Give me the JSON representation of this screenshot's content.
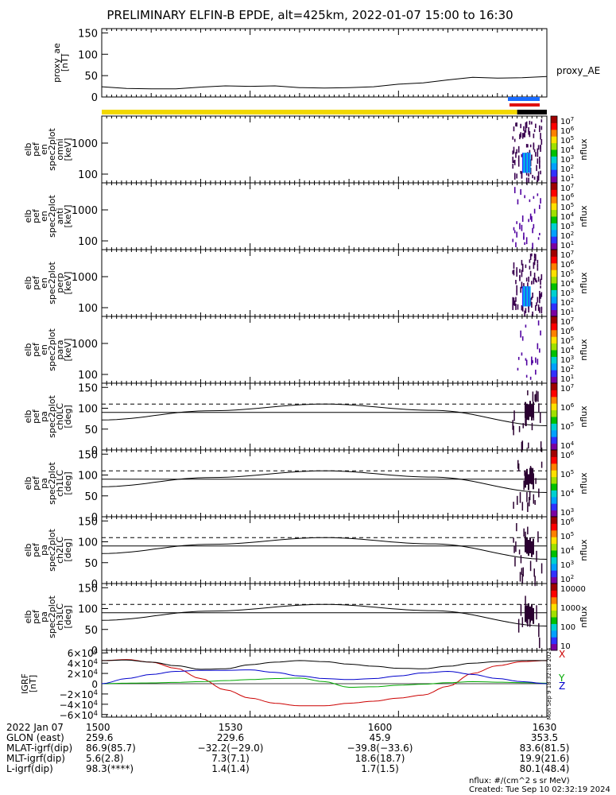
{
  "title": "PRELIMINARY ELFIN-B EPDE, alt=425km, 2022-01-07 15:00 to 16:30",
  "colors": {
    "ae": "#000000",
    "yellow": "#f2d800",
    "black": "#000000",
    "blue_bar": "#1a6cff",
    "red_bar": "#e01010",
    "grf_x": "#cc0000",
    "grf_y": "#00aa00",
    "grf_z": "#0000cc",
    "grf_total": "#000000"
  },
  "ae_panel": {
    "label_lines": [
      "proxy_ae",
      "[nT]"
    ],
    "legend": "proxy_AE",
    "yticks": [
      "150",
      "100",
      "50",
      "0"
    ]
  },
  "spec_energy_panels": [
    {
      "name": "omni",
      "label_lines": [
        "elb",
        "pef",
        "en",
        "spec2plot",
        "omni",
        "[keV]"
      ],
      "yticks": [
        "1000",
        "100"
      ],
      "cbar_ticks": [
        "10^7",
        "10^6",
        "10^5",
        "10^4",
        "10^3",
        "10^2",
        "10^1"
      ],
      "cbar_unit": "nflux",
      "strong": true
    },
    {
      "name": "anti",
      "label_lines": [
        "elb",
        "pef",
        "en",
        "spec2plot",
        "anti",
        "[keV]"
      ],
      "yticks": [
        "1000",
        "100"
      ],
      "cbar_ticks": [
        "10^7",
        "10^6",
        "10^5",
        "10^4",
        "10^3",
        "10^2",
        "10^1"
      ],
      "cbar_unit": "nflux",
      "strong": false
    },
    {
      "name": "perp",
      "label_lines": [
        "elb",
        "pef",
        "en",
        "spec2plot",
        "perp",
        "[keV]"
      ],
      "yticks": [
        "1000",
        "100"
      ],
      "cbar_ticks": [
        "10^7",
        "10^6",
        "10^5",
        "10^4",
        "10^3",
        "10^2",
        "10^1"
      ],
      "cbar_unit": "nflux",
      "strong": true
    },
    {
      "name": "para",
      "label_lines": [
        "elb",
        "pef",
        "en",
        "spec2plot",
        "para",
        "[keV]"
      ],
      "yticks": [
        "1000",
        "100"
      ],
      "cbar_ticks": [
        "10^7",
        "10^6",
        "10^5",
        "10^4",
        "10^3",
        "10^2",
        "10^1"
      ],
      "cbar_unit": "nflux",
      "strong": false
    }
  ],
  "spec_pitch_panels": [
    {
      "name": "ch0LC",
      "label_lines": [
        "elb",
        "pef",
        "pa",
        "spec2plot",
        "ch0LC",
        "[deg]"
      ],
      "yticks": [
        "150",
        "100",
        "50",
        "0"
      ],
      "cbar_ticks": [
        "10^7",
        "10^6",
        "10^5",
        "10^4"
      ],
      "cbar_unit": "nflux"
    },
    {
      "name": "ch1LC",
      "label_lines": [
        "elb",
        "pef",
        "pa",
        "spec2plot",
        "ch1LC",
        "[deg]"
      ],
      "yticks": [
        "150",
        "100",
        "50",
        "0"
      ],
      "cbar_ticks": [
        "10^6",
        "10^5",
        "10^4",
        "10^3"
      ],
      "cbar_unit": "nflux"
    },
    {
      "name": "ch2LC",
      "label_lines": [
        "elb",
        "pef",
        "pa",
        "spec2plot",
        "ch2LC",
        "[deg]"
      ],
      "yticks": [
        "150",
        "100",
        "50",
        "0"
      ],
      "cbar_ticks": [
        "10^6",
        "10^5",
        "10^4",
        "10^3",
        "10^2"
      ],
      "cbar_unit": "nflux"
    },
    {
      "name": "ch3LC",
      "label_lines": [
        "elb",
        "pef",
        "pa",
        "spec2plot",
        "ch3LC",
        "[deg]"
      ],
      "yticks": [
        "150",
        "100",
        "50",
        "0"
      ],
      "cbar_ticks": [
        "10000",
        "1000",
        "100",
        "10"
      ],
      "cbar_unit": "nflux"
    }
  ],
  "grf_panel": {
    "label_lines": [
      "IGRF",
      "[nT]"
    ],
    "yticks": [
      "6×10^4",
      "4×10^4",
      "2×10^4",
      "0",
      "−2×10^4",
      "−4×10^4",
      "−6×10^4"
    ],
    "legend": [
      "X",
      "Y",
      "Z"
    ],
    "side_text": "Mon Sep 9 18:32:18 2024"
  },
  "footer": {
    "rows": [
      [
        "2022 Jan 07",
        "1500",
        "1530",
        "1600",
        "1630"
      ],
      [
        "GLON (east)",
        "259.6",
        "229.6",
        "45.9",
        "353.5"
      ],
      [
        "MLAT-igrf(dip)",
        "86.9(85.7)",
        "−32.2(−29.0)",
        "−39.8(−33.6)",
        "83.6(81.5)"
      ],
      [
        "MLT-igrf(dip)",
        "5.6(2.8)",
        "7.3(7.1)",
        "18.6(18.7)",
        "19.9(21.6)"
      ],
      [
        "L-igrf(dip)",
        "98.3(****)",
        "1.4(1.4)",
        "1.7(1.5)",
        "80.1(48.4)"
      ]
    ],
    "note1": "nflux: #/(cm^2 s sr MeV)",
    "note2": "Created: Tue Sep 10 02:32:19 2024"
  },
  "chart_data": {
    "type": "line",
    "title": "PRELIMINARY ELFIN-B EPDE, alt=425km, 2022-01-07 15:00 to 16:30",
    "x_range": [
      0,
      90
    ],
    "x_ticks": [
      "1500",
      "1530",
      "1600",
      "1630"
    ],
    "proxy_ae": {
      "x": [
        0,
        5,
        10,
        15,
        20,
        25,
        30,
        35,
        40,
        45,
        50,
        55,
        60,
        65,
        70,
        75,
        80,
        85,
        90
      ],
      "y": [
        24,
        20,
        19,
        19,
        23,
        26,
        25,
        26,
        22,
        21,
        22,
        24,
        30,
        33,
        40,
        46,
        44,
        45,
        48
      ],
      "ylim": [
        0,
        160
      ]
    },
    "pitch_angle_lines": {
      "x": [
        0,
        22,
        45,
        67,
        90
      ],
      "solid": [
        72,
        94,
        110,
        95,
        58
      ],
      "dashed": [
        110,
        110,
        110,
        110,
        110
      ],
      "horizontal": [
        90,
        90,
        90,
        90,
        90
      ],
      "ylim": [
        0,
        160
      ]
    },
    "igrf": {
      "x": [
        0,
        5,
        10,
        15,
        20,
        25,
        30,
        35,
        40,
        45,
        50,
        55,
        60,
        65,
        70,
        75,
        80,
        85,
        90
      ],
      "series": [
        {
          "name": "X",
          "values": [
            45000,
            47000,
            42000,
            30000,
            10000,
            -12000,
            -28000,
            -38000,
            -43000,
            -43000,
            -38000,
            -34000,
            -28000,
            -22000,
            -5000,
            20000,
            35000,
            43000,
            45000
          ]
        },
        {
          "name": "Y",
          "values": [
            0,
            1000,
            1500,
            2500,
            4000,
            6000,
            8000,
            10000,
            11000,
            4000,
            -7000,
            -6000,
            -3000,
            -1000,
            2000,
            4000,
            3000,
            2000,
            1000
          ]
        },
        {
          "name": "Z",
          "values": [
            0,
            10000,
            18000,
            24000,
            26000,
            26000,
            27000,
            22000,
            15000,
            10000,
            8000,
            10000,
            15000,
            21000,
            24000,
            18000,
            10000,
            4000,
            0
          ]
        },
        {
          "name": "total",
          "values": [
            45000,
            46000,
            42000,
            35000,
            28000,
            29000,
            37000,
            42000,
            45000,
            43000,
            38000,
            34000,
            30000,
            29000,
            34000,
            40000,
            43000,
            45000,
            45000
          ]
        }
      ],
      "ylim": [
        -65000,
        65000
      ]
    },
    "spectrogram_time_range": [
      83,
      89
    ]
  }
}
